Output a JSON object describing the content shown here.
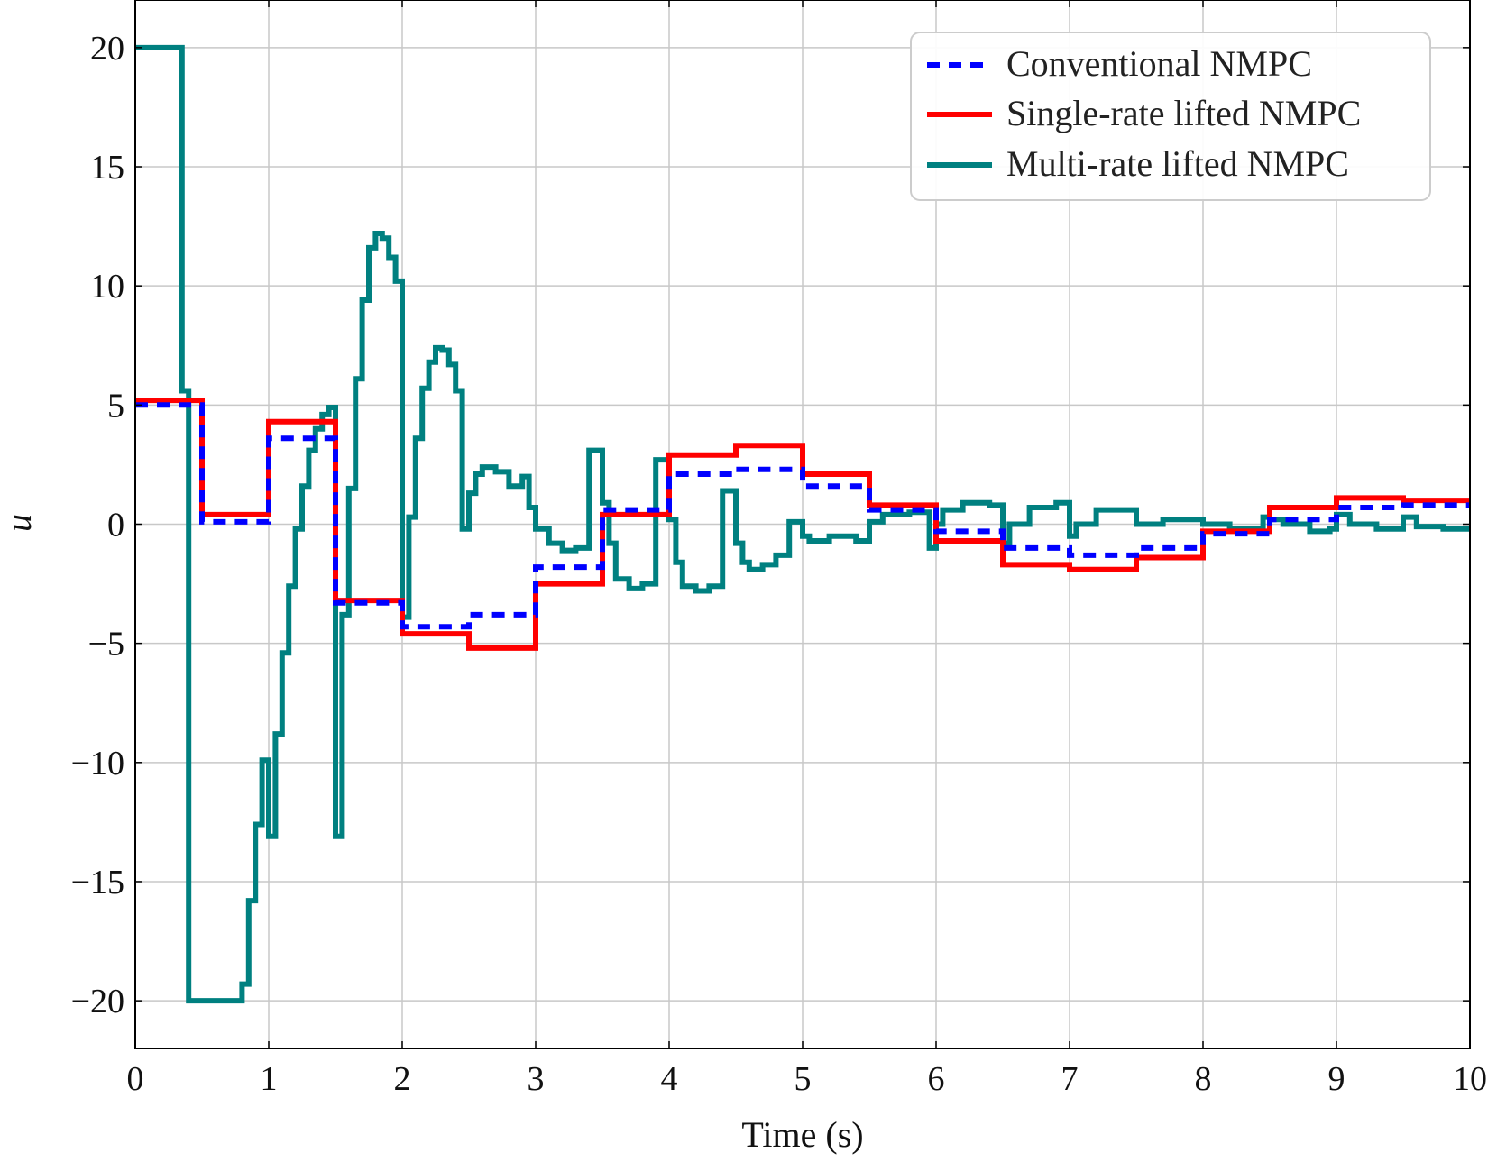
{
  "chart_data": {
    "type": "line",
    "title": "",
    "xlabel": "Time (s)",
    "ylabel": "u",
    "xlim": [
      0,
      10
    ],
    "ylim": [
      -22,
      22
    ],
    "x_ticks": [
      0,
      1,
      2,
      3,
      4,
      5,
      6,
      7,
      8,
      9,
      10
    ],
    "y_ticks": [
      -20,
      -15,
      -10,
      -5,
      0,
      5,
      10,
      15,
      20
    ],
    "x_tick_labels": [
      "0",
      "1",
      "2",
      "3",
      "4",
      "5",
      "6",
      "7",
      "8",
      "9",
      "10"
    ],
    "y_tick_labels": [
      "−20",
      "−15",
      "−10",
      "−5",
      "0",
      "5",
      "10",
      "15",
      "20"
    ],
    "grid": true,
    "legend_position": "top-right",
    "series": [
      {
        "name": "Conventional NMPC",
        "color": "#0000ff",
        "style": "dashed",
        "step": true,
        "x": [
          0,
          0.5,
          1.0,
          1.5,
          2.0,
          2.5,
          3.0,
          3.5,
          4.0,
          4.5,
          5.0,
          5.5,
          6.0,
          6.5,
          7.0,
          7.5,
          8.0,
          8.5,
          9.0,
          9.5,
          10.0
        ],
        "y": [
          5.0,
          0.1,
          3.6,
          -3.3,
          -4.3,
          -3.8,
          -1.8,
          0.6,
          2.1,
          2.3,
          1.6,
          0.6,
          -0.3,
          -1.0,
          -1.3,
          -1.0,
          -0.4,
          0.2,
          0.7,
          0.8,
          0.8
        ]
      },
      {
        "name": "Single-rate lifted NMPC",
        "color": "#ff0000",
        "style": "solid",
        "step": true,
        "x": [
          0,
          0.5,
          1.0,
          1.5,
          2.0,
          2.5,
          3.0,
          3.5,
          4.0,
          4.5,
          5.0,
          5.5,
          6.0,
          6.5,
          7.0,
          7.5,
          8.0,
          8.5,
          9.0,
          9.5,
          10.0
        ],
        "y": [
          5.2,
          0.4,
          4.3,
          -3.2,
          -4.6,
          -5.2,
          -2.5,
          0.4,
          2.9,
          3.3,
          2.1,
          0.8,
          -0.7,
          -1.7,
          -1.9,
          -1.4,
          -0.3,
          0.7,
          1.1,
          1.0,
          1.0
        ]
      },
      {
        "name": "Multi-rate lifted NMPC",
        "color": "#008080",
        "style": "solid",
        "step": true,
        "x": [
          0,
          0.35,
          0.4,
          0.8,
          0.85,
          0.9,
          0.95,
          1.0,
          1.05,
          1.1,
          1.15,
          1.2,
          1.25,
          1.3,
          1.35,
          1.4,
          1.45,
          1.5,
          1.55,
          1.6,
          1.65,
          1.7,
          1.75,
          1.8,
          1.85,
          1.9,
          1.95,
          2.0,
          2.05,
          2.1,
          2.15,
          2.2,
          2.25,
          2.3,
          2.35,
          2.4,
          2.45,
          2.5,
          2.55,
          2.6,
          2.7,
          2.8,
          2.9,
          2.95,
          3.0,
          3.1,
          3.2,
          3.3,
          3.4,
          3.5,
          3.55,
          3.6,
          3.7,
          3.8,
          3.9,
          4.0,
          4.05,
          4.1,
          4.2,
          4.3,
          4.4,
          4.5,
          4.55,
          4.6,
          4.7,
          4.8,
          4.9,
          5.0,
          5.05,
          5.2,
          5.4,
          5.5,
          5.6,
          5.8,
          5.95,
          6.0,
          6.05,
          6.2,
          6.4,
          6.5,
          6.55,
          6.7,
          6.9,
          7.0,
          7.05,
          7.2,
          7.45,
          7.5,
          7.7,
          7.95,
          8.0,
          8.2,
          8.45,
          8.5,
          8.6,
          8.8,
          8.95,
          9.0,
          9.1,
          9.3,
          9.45,
          9.5,
          9.6,
          9.8,
          10.0
        ],
        "y": [
          20.0,
          5.6,
          -20.0,
          -19.3,
          -15.8,
          -12.6,
          -9.9,
          -13.1,
          -8.8,
          -5.4,
          -2.6,
          -0.2,
          1.6,
          3.1,
          4.0,
          4.6,
          4.9,
          -13.1,
          -3.8,
          1.5,
          6.1,
          9.4,
          11.6,
          12.2,
          12.0,
          11.2,
          10.2,
          -3.9,
          0.3,
          3.6,
          5.7,
          6.8,
          7.4,
          7.3,
          6.7,
          5.6,
          -0.2,
          1.3,
          2.1,
          2.4,
          2.2,
          1.6,
          2.0,
          0.7,
          -0.2,
          -0.8,
          -1.1,
          -1.0,
          3.1,
          0.9,
          -0.8,
          -2.3,
          -2.7,
          -2.5,
          2.7,
          0.2,
          -1.6,
          -2.6,
          -2.8,
          -2.6,
          1.4,
          -0.8,
          -1.6,
          -1.9,
          -1.7,
          -1.3,
          0.1,
          -0.5,
          -0.7,
          -0.5,
          -0.7,
          0.1,
          0.4,
          0.5,
          -1.0,
          0.0,
          0.6,
          0.9,
          0.8,
          -0.8,
          0.0,
          0.7,
          0.9,
          -0.5,
          0.0,
          0.6,
          0.6,
          0.0,
          0.2,
          0.2,
          0.0,
          -0.2,
          0.3,
          0.2,
          0.0,
          -0.3,
          -0.2,
          0.4,
          0.0,
          -0.2,
          -0.2,
          0.3,
          -0.1,
          -0.2,
          -0.1
        ]
      }
    ]
  }
}
